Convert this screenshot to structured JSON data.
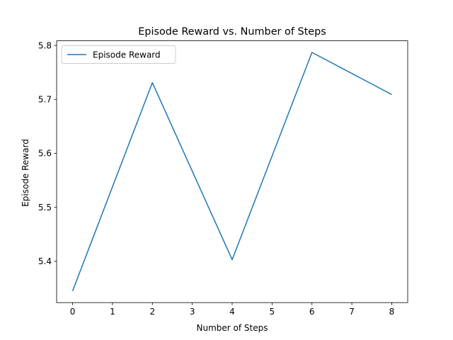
{
  "chart_data": {
    "type": "line",
    "title": "Episode Reward vs. Number of Steps",
    "xlabel": "Number of Steps",
    "ylabel": "Episode Reward",
    "xlim": [
      -0.4,
      8.4
    ],
    "ylim": [
      5.3235,
      5.8085
    ],
    "xticks": [
      0,
      1,
      2,
      3,
      4,
      5,
      6,
      7,
      8
    ],
    "yticks": [
      5.4,
      5.5,
      5.6,
      5.7,
      5.8
    ],
    "grid": false,
    "legend_position": "upper-left",
    "series": [
      {
        "name": "Episode Reward",
        "color": "#1f77b4",
        "x": [
          0,
          2,
          4,
          6,
          8
        ],
        "values": [
          5.345,
          5.731,
          5.403,
          5.787,
          5.709
        ]
      }
    ]
  }
}
